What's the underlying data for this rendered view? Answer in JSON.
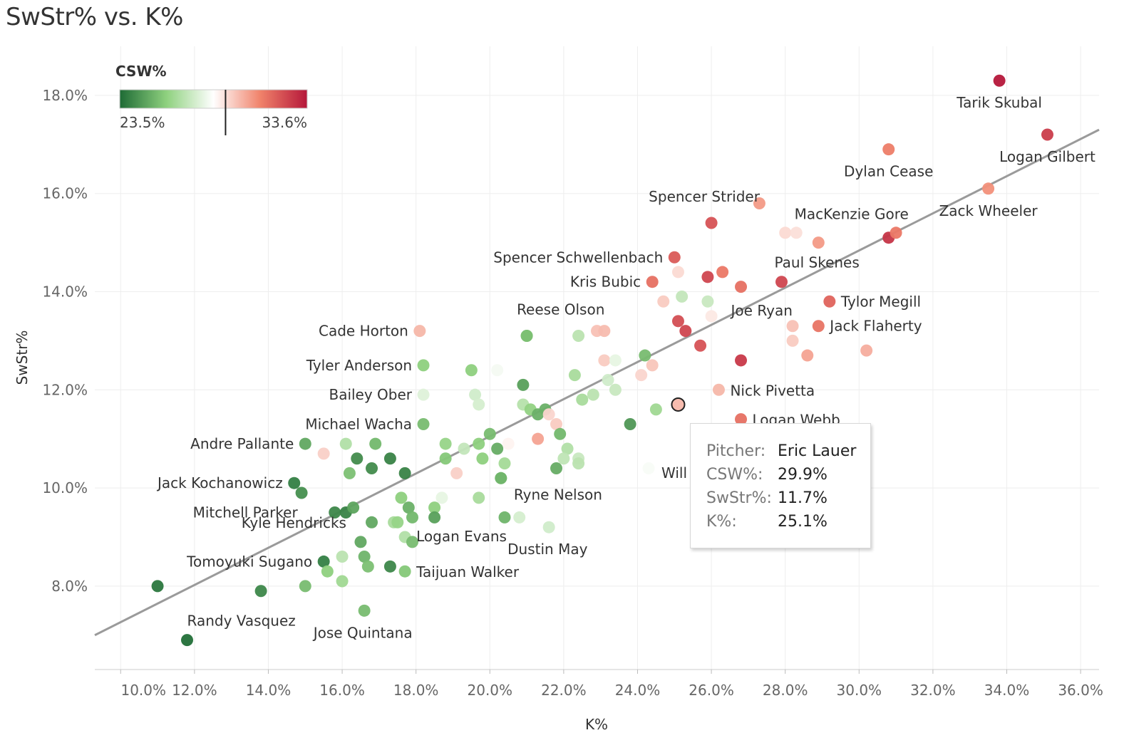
{
  "chart_data": {
    "type": "scatter",
    "title": "SwStr% vs. K%",
    "xlabel": "K%",
    "ylabel": "SwStr%",
    "xlim": [
      9.3,
      36.5
    ],
    "ylim": [
      6.3,
      19.0
    ],
    "x_ticks": [
      "10.0%",
      "12.0%",
      "14.0%",
      "16.0%",
      "18.0%",
      "20.0%",
      "22.0%",
      "24.0%",
      "26.0%",
      "28.0%",
      "30.0%",
      "32.0%",
      "34.0%",
      "36.0%"
    ],
    "x_tick_values": [
      10,
      12,
      14,
      16,
      18,
      20,
      22,
      24,
      26,
      28,
      30,
      32,
      34,
      36
    ],
    "y_ticks": [
      "8.0%",
      "10.0%",
      "12.0%",
      "14.0%",
      "16.0%",
      "18.0%"
    ],
    "y_tick_values": [
      8,
      10,
      12,
      14,
      16,
      18
    ],
    "trendline": [
      [
        9.3,
        7.0
      ],
      [
        36.5,
        17.3
      ]
    ],
    "color_legend": {
      "title": "CSW%",
      "min_label": "23.5%",
      "max_label": "33.6%",
      "min": 23.5,
      "max": 33.6,
      "marker": 29.2
    },
    "color_scale": {
      "low": "#1e6b35",
      "mid_low": "#8fd17f",
      "mid": "#ffffff",
      "mid_high": "#f0826a",
      "high": "#b5173a"
    },
    "points": [
      {
        "k": 33.8,
        "swstr": 18.3,
        "csw": 33.6,
        "label": "Tarik Skubal"
      },
      {
        "k": 35.1,
        "swstr": 17.2,
        "csw": 32.7,
        "label": "Logan Gilbert"
      },
      {
        "k": 30.8,
        "swstr": 16.9,
        "csw": 31.2,
        "label": "Dylan Cease"
      },
      {
        "k": 33.5,
        "swstr": 16.1,
        "csw": 30.8,
        "label": "Zack Wheeler"
      },
      {
        "k": 30.8,
        "swstr": 15.1,
        "csw": 32.9,
        "label": "MacKenzie Gore"
      },
      {
        "k": 31.0,
        "swstr": 15.2,
        "csw": 31.3
      },
      {
        "k": 25.0,
        "swstr": 14.7,
        "csw": 32.0,
        "label": "Spencer Schwellenbach"
      },
      {
        "k": 24.4,
        "swstr": 14.2,
        "csw": 31.5,
        "label": "Kris Bubic"
      },
      {
        "k": 25.9,
        "swstr": 14.3,
        "csw": 32.5
      },
      {
        "k": 26.3,
        "swstr": 14.4,
        "csw": 31.3
      },
      {
        "k": 26.8,
        "swstr": 14.1,
        "csw": 31.5
      },
      {
        "k": 27.9,
        "swstr": 14.2,
        "csw": 32.5,
        "label": "Paul Skenes"
      },
      {
        "k": 27.3,
        "swstr": 15.8,
        "csw": 30.6
      },
      {
        "k": 28.9,
        "swstr": 15.0,
        "csw": 30.6
      },
      {
        "k": 28.0,
        "swstr": 15.2,
        "csw": 29.3
      },
      {
        "k": 28.3,
        "swstr": 15.2,
        "csw": 29.2
      },
      {
        "k": 25.1,
        "swstr": 14.4,
        "csw": 29.3
      },
      {
        "k": 29.2,
        "swstr": 13.8,
        "csw": 31.8,
        "label": "Tylor Megill"
      },
      {
        "k": 28.9,
        "swstr": 13.3,
        "csw": 31.4,
        "label": "Jack Flaherty"
      },
      {
        "k": 28.2,
        "swstr": 13.3,
        "csw": 29.8
      },
      {
        "k": 28.2,
        "swstr": 13.0,
        "csw": 29.6
      },
      {
        "k": 28.6,
        "swstr": 12.7,
        "csw": 30.4
      },
      {
        "k": 30.2,
        "swstr": 12.8,
        "csw": 30.2
      },
      {
        "k": 25.1,
        "swstr": 13.4,
        "csw": 32.3
      },
      {
        "k": 25.3,
        "swstr": 13.2,
        "csw": 32.5
      },
      {
        "k": 25.7,
        "swstr": 12.9,
        "csw": 32.2
      },
      {
        "k": 26.8,
        "swstr": 12.6,
        "csw": 32.8,
        "label": "Joe Ryan"
      },
      {
        "k": 26.0,
        "swstr": 13.5,
        "csw": 29.0
      },
      {
        "k": 24.7,
        "swstr": 13.8,
        "csw": 29.6
      },
      {
        "k": 25.2,
        "swstr": 13.9,
        "csw": 27.2
      },
      {
        "k": 25.9,
        "swstr": 13.8,
        "csw": 27.3
      },
      {
        "k": 18.1,
        "swstr": 13.2,
        "csw": 30.0,
        "label": "Cade Horton"
      },
      {
        "k": 22.9,
        "swstr": 13.2,
        "csw": 29.8
      },
      {
        "k": 23.1,
        "swstr": 13.2,
        "csw": 29.9
      },
      {
        "k": 22.4,
        "swstr": 13.1,
        "csw": 27.0
      },
      {
        "k": 21.0,
        "swstr": 13.1,
        "csw": 25.6
      },
      {
        "k": 23.1,
        "swstr": 12.6,
        "csw": 29.6
      },
      {
        "k": 23.4,
        "swstr": 12.6,
        "csw": 28.0
      },
      {
        "k": 24.2,
        "swstr": 12.7,
        "csw": 25.5
      },
      {
        "k": 24.1,
        "swstr": 12.3,
        "csw": 29.4
      },
      {
        "k": 24.4,
        "swstr": 12.5,
        "csw": 29.7
      },
      {
        "k": 18.2,
        "swstr": 12.5,
        "csw": 26.0,
        "label": "Tyler Anderson"
      },
      {
        "k": 19.5,
        "swstr": 12.4,
        "csw": 26.0
      },
      {
        "k": 20.2,
        "swstr": 12.4,
        "csw": 28.3
      },
      {
        "k": 20.9,
        "swstr": 12.1,
        "csw": 24.8
      },
      {
        "k": 22.3,
        "swstr": 12.3,
        "csw": 26.6
      },
      {
        "k": 23.4,
        "swstr": 12.0,
        "csw": 27.3
      },
      {
        "k": 23.2,
        "swstr": 12.2,
        "csw": 27.5
      },
      {
        "k": 18.2,
        "swstr": 11.9,
        "csw": 27.8,
        "label": "Bailey Ober"
      },
      {
        "k": 19.6,
        "swstr": 11.9,
        "csw": 27.5
      },
      {
        "k": 19.7,
        "swstr": 11.7,
        "csw": 27.6
      },
      {
        "k": 20.9,
        "swstr": 11.7,
        "csw": 26.9
      },
      {
        "k": 21.1,
        "swstr": 11.6,
        "csw": 26.1
      },
      {
        "k": 21.3,
        "swstr": 11.5,
        "csw": 25.2
      },
      {
        "k": 21.5,
        "swstr": 11.6,
        "csw": 25.2
      },
      {
        "k": 21.6,
        "swstr": 11.5,
        "csw": 29.4
      },
      {
        "k": 21.8,
        "swstr": 11.3,
        "csw": 29.6
      },
      {
        "k": 22.5,
        "swstr": 11.8,
        "csw": 26.6
      },
      {
        "k": 22.8,
        "swstr": 11.9,
        "csw": 27.0
      },
      {
        "k": 23.8,
        "swstr": 11.3,
        "csw": 24.6
      },
      {
        "k": 24.5,
        "swstr": 11.6,
        "csw": 26.4
      },
      {
        "k": 26.2,
        "swstr": 12.0,
        "csw": 30.0,
        "label": "Nick Pivetta"
      },
      {
        "k": 26.8,
        "swstr": 11.4,
        "csw": 31.5,
        "label": "Logan Webb"
      },
      {
        "k": 25.1,
        "swstr": 11.7,
        "csw": 29.9,
        "label": "",
        "hovered": true
      },
      {
        "k": 25.7,
        "swstr": 11.1,
        "csw": 29.6
      },
      {
        "k": 18.2,
        "swstr": 11.3,
        "csw": 25.5,
        "label": "Michael Wacha"
      },
      {
        "k": 15.0,
        "swstr": 10.9,
        "csw": 25.0,
        "label": "Andre Pallante"
      },
      {
        "k": 15.5,
        "swstr": 10.7,
        "csw": 29.5
      },
      {
        "k": 16.1,
        "swstr": 10.9,
        "csw": 26.8
      },
      {
        "k": 16.4,
        "swstr": 10.6,
        "csw": 24.3
      },
      {
        "k": 16.8,
        "swstr": 10.4,
        "csw": 24.3
      },
      {
        "k": 16.9,
        "swstr": 10.9,
        "csw": 25.4
      },
      {
        "k": 17.3,
        "swstr": 10.6,
        "csw": 24.1
      },
      {
        "k": 16.2,
        "swstr": 10.3,
        "csw": 25.6
      },
      {
        "k": 17.7,
        "swstr": 10.3,
        "csw": 24.1
      },
      {
        "k": 18.8,
        "swstr": 10.9,
        "csw": 26.2
      },
      {
        "k": 18.8,
        "swstr": 10.6,
        "csw": 25.8
      },
      {
        "k": 19.3,
        "swstr": 10.8,
        "csw": 27.2
      },
      {
        "k": 19.7,
        "swstr": 10.9,
        "csw": 26.0
      },
      {
        "k": 20.0,
        "swstr": 11.1,
        "csw": 25.5
      },
      {
        "k": 19.8,
        "swstr": 10.6,
        "csw": 26.0
      },
      {
        "k": 20.2,
        "swstr": 10.8,
        "csw": 25.1
      },
      {
        "k": 20.4,
        "swstr": 10.5,
        "csw": 26.5
      },
      {
        "k": 20.5,
        "swstr": 10.9,
        "csw": 28.8
      },
      {
        "k": 19.1,
        "swstr": 10.3,
        "csw": 29.5
      },
      {
        "k": 20.3,
        "swstr": 10.2,
        "csw": 26.2
      },
      {
        "k": 21.3,
        "swstr": 11.0,
        "csw": 30.4
      },
      {
        "k": 21.9,
        "swstr": 11.1,
        "csw": 25.4
      },
      {
        "k": 22.1,
        "swstr": 10.8,
        "csw": 26.8
      },
      {
        "k": 22.0,
        "swstr": 10.6,
        "csw": 27.1
      },
      {
        "k": 22.4,
        "swstr": 10.6,
        "csw": 27.3
      },
      {
        "k": 22.4,
        "swstr": 10.5,
        "csw": 27.0
      },
      {
        "k": 21.8,
        "swstr": 10.4,
        "csw": 25.1
      },
      {
        "k": 24.3,
        "swstr": 10.4,
        "csw": 28.4
      },
      {
        "k": 14.7,
        "swstr": 10.1,
        "csw": 24.0,
        "label": "Jack Kochanowicz"
      },
      {
        "k": 14.9,
        "swstr": 9.9,
        "csw": 24.4
      },
      {
        "k": 15.8,
        "swstr": 9.5,
        "csw": 24.2,
        "label": "Mitchell Parker"
      },
      {
        "k": 16.1,
        "swstr": 9.5,
        "csw": 24.1
      },
      {
        "k": 16.3,
        "swstr": 9.6,
        "csw": 24.9
      },
      {
        "k": 16.8,
        "swstr": 9.3,
        "csw": 25.0
      },
      {
        "k": 17.6,
        "swstr": 9.8,
        "csw": 26.0
      },
      {
        "k": 17.8,
        "swstr": 9.6,
        "csw": 25.2
      },
      {
        "k": 17.4,
        "swstr": 9.3,
        "csw": 26.6
      },
      {
        "k": 17.5,
        "swstr": 9.3,
        "csw": 26.2
      },
      {
        "k": 17.9,
        "swstr": 9.4,
        "csw": 25.4
      },
      {
        "k": 18.5,
        "swstr": 9.6,
        "csw": 26.0
      },
      {
        "k": 18.5,
        "swstr": 9.4,
        "csw": 24.8
      },
      {
        "k": 18.7,
        "swstr": 9.8,
        "csw": 28.0
      },
      {
        "k": 19.7,
        "swstr": 9.8,
        "csw": 26.6
      },
      {
        "k": 20.4,
        "swstr": 9.4,
        "csw": 25.3
      },
      {
        "k": 20.8,
        "swstr": 9.4,
        "csw": 27.6
      },
      {
        "k": 16.5,
        "swstr": 8.9,
        "csw": 25.0,
        "label": "Kyle Hendricks"
      },
      {
        "k": 17.7,
        "swstr": 9.0,
        "csw": 26.8,
        "label": "Logan Evans"
      },
      {
        "k": 17.9,
        "swstr": 8.9,
        "csw": 25.5
      },
      {
        "k": 21.6,
        "swstr": 9.2,
        "csw": 27.5,
        "label": "Dustin May"
      },
      {
        "k": 15.5,
        "swstr": 8.5,
        "csw": 24.0,
        "label": "Tomoyuki Sugano"
      },
      {
        "k": 15.6,
        "swstr": 8.3,
        "csw": 26.0
      },
      {
        "k": 16.0,
        "swstr": 8.6,
        "csw": 27.0
      },
      {
        "k": 16.6,
        "swstr": 8.6,
        "csw": 25.3
      },
      {
        "k": 16.7,
        "swstr": 8.4,
        "csw": 25.6
      },
      {
        "k": 17.3,
        "swstr": 8.4,
        "csw": 24.2
      },
      {
        "k": 17.7,
        "swstr": 8.3,
        "csw": 25.8,
        "label": "Taijuan Walker"
      },
      {
        "k": 15.0,
        "swstr": 8.0,
        "csw": 25.5
      },
      {
        "k": 16.0,
        "swstr": 8.1,
        "csw": 26.4
      },
      {
        "k": 13.8,
        "swstr": 7.9,
        "csw": 24.2
      },
      {
        "k": 11.0,
        "swstr": 8.0,
        "csw": 23.8
      },
      {
        "k": 11.8,
        "swstr": 6.9,
        "csw": 23.6,
        "label": "Randy Vasquez"
      },
      {
        "k": 16.6,
        "swstr": 7.5,
        "csw": 25.5,
        "label": "Jose Quintana"
      },
      {
        "k": 20.3,
        "swstr": 10.2,
        "csw": 25.3,
        "label": "Ryne Nelson"
      },
      {
        "k": 21.0,
        "swstr": 13.1,
        "csw": 25.6,
        "label": "Reese Olson"
      },
      {
        "k": 26.0,
        "swstr": 15.4,
        "csw": 32.2,
        "label": "Spencer Strider"
      }
    ],
    "label_positions_note": "",
    "tooltip": {
      "pitcher_key": "Pitcher:",
      "pitcher_val": "Eric Lauer",
      "csw_key": "CSW%:",
      "csw_val": "29.9%",
      "swstr_key": "SwStr%:",
      "swstr_val": "11.7%",
      "k_key": "K%:",
      "k_val": "25.1%"
    },
    "partial_label": "Will"
  }
}
